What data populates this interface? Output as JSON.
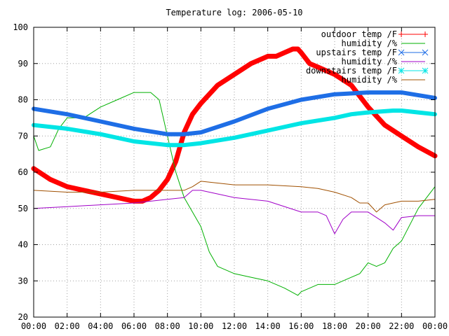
{
  "chart_data": {
    "type": "line",
    "title": "Temperature log: 2006-05-10",
    "xlabel": "",
    "ylabel": "",
    "x_unit": "hour",
    "xlim": [
      0,
      24
    ],
    "ylim": [
      20,
      100
    ],
    "x_ticks": [
      0,
      2,
      4,
      6,
      8,
      10,
      12,
      14,
      16,
      18,
      20,
      22,
      24
    ],
    "x_tick_labels": [
      "00:00",
      "02:00",
      "04:00",
      "06:00",
      "08:00",
      "10:00",
      "12:00",
      "14:00",
      "16:00",
      "18:00",
      "20:00",
      "22:00",
      "00:00"
    ],
    "y_ticks": [
      20,
      30,
      40,
      50,
      60,
      70,
      80,
      90,
      100
    ],
    "y_tick_labels": [
      "20",
      "30",
      "40",
      "50",
      "60",
      "70",
      "80",
      "90",
      "100"
    ],
    "grid": true,
    "legend_position": "top-right",
    "series": [
      {
        "name": "outdoor temp /F",
        "color": "#ff0000",
        "marker": "plus",
        "x": [
          0,
          1,
          2,
          3,
          4,
          5,
          6,
          6.5,
          7,
          7.5,
          8,
          8.5,
          9,
          9.5,
          10,
          11,
          12,
          13,
          14,
          14.5,
          15,
          15.5,
          15.8,
          16,
          16.5,
          17,
          18,
          19,
          20,
          21,
          22,
          23,
          24
        ],
        "values": [
          61,
          58,
          56,
          55,
          54,
          53,
          52,
          52,
          53,
          55,
          58,
          63,
          71,
          76,
          79,
          84,
          87,
          90,
          92,
          92,
          93,
          94,
          94,
          93,
          90,
          89,
          87,
          84,
          78,
          73,
          70,
          67,
          64.5
        ]
      },
      {
        "name": "humidity /%",
        "color": "#00b000",
        "marker": "none",
        "x": [
          0,
          0.3,
          1,
          1.5,
          2,
          3,
          4,
          5,
          6,
          7,
          7.5,
          8,
          8.5,
          9,
          10,
          10.5,
          11,
          12,
          13,
          14,
          15,
          15.8,
          16,
          17,
          18,
          19,
          19.5,
          20,
          20.5,
          21,
          21.5,
          22,
          23,
          24
        ],
        "values": [
          70,
          66,
          67,
          72,
          75,
          75,
          78,
          80,
          82,
          82,
          80,
          70,
          60,
          53,
          45,
          38,
          34,
          32,
          31,
          30,
          28,
          26,
          27,
          29,
          29,
          31,
          32,
          35,
          34,
          35,
          39,
          41,
          50,
          56
        ]
      },
      {
        "name": "upstairs temp /F",
        "color": "#1e6ee6",
        "marker": "cross",
        "x": [
          0,
          2,
          4,
          6,
          8,
          9,
          10,
          12,
          14,
          16,
          18,
          20,
          22,
          24
        ],
        "values": [
          77.5,
          76,
          74,
          72,
          70.5,
          70.5,
          71,
          74,
          77.5,
          80,
          81.5,
          82,
          82,
          80.5
        ]
      },
      {
        "name": "humidity /%",
        "color": "#a000c8",
        "marker": "none",
        "x": [
          0,
          2,
          4,
          6,
          8,
          9,
          9.5,
          10,
          12,
          14,
          16,
          17,
          17.5,
          18,
          18.5,
          19,
          20,
          21,
          21.5,
          22,
          23,
          24
        ],
        "values": [
          50,
          50.5,
          51,
          51.5,
          52.5,
          53,
          55,
          55,
          53,
          52,
          49,
          49,
          48,
          43,
          47,
          49,
          49,
          46,
          44,
          47.5,
          48,
          48
        ]
      },
      {
        "name": "downstairs temp /F",
        "color": "#00e5e5",
        "marker": "star",
        "x": [
          0,
          2,
          4,
          6,
          8,
          9,
          10,
          12,
          14,
          16,
          18,
          19,
          20,
          21.5,
          22,
          23,
          24
        ],
        "values": [
          73,
          72,
          70.5,
          68.5,
          67.5,
          67.5,
          68,
          69.5,
          71.5,
          73.5,
          75,
          76,
          76.5,
          77,
          77,
          76.5,
          76
        ]
      },
      {
        "name": "humidity /%",
        "color": "#a05000",
        "marker": "none",
        "x": [
          0,
          2,
          4,
          6,
          8,
          9,
          9.5,
          10,
          12,
          14,
          16,
          17,
          18,
          19,
          19.5,
          20,
          20.5,
          21,
          22,
          23,
          24
        ],
        "values": [
          55,
          54.5,
          54.5,
          55,
          55,
          55,
          56,
          57.5,
          56.5,
          56.5,
          56,
          55.5,
          54.5,
          53,
          51.5,
          51.5,
          49,
          51,
          52,
          52,
          52.5
        ]
      }
    ]
  }
}
